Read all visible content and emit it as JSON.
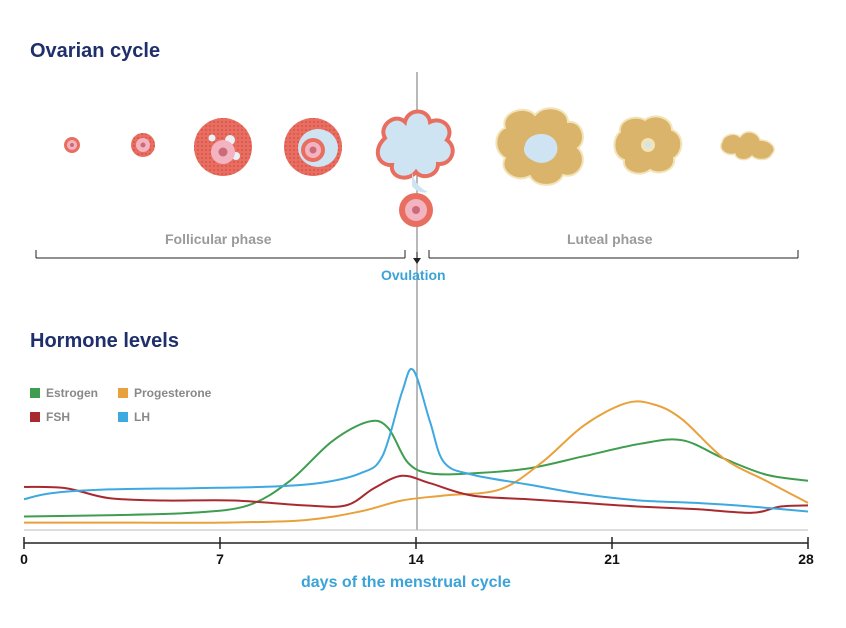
{
  "titles": {
    "ovarian": "Ovarian cycle",
    "hormones": "Hormone levels"
  },
  "phases": {
    "follicular": "Follicular phase",
    "luteal": "Luteal phase",
    "ovulation": "Ovulation"
  },
  "colors": {
    "title": "#1f2f6b",
    "estrogen": "#3e9d4e",
    "progesterone": "#e9a13b",
    "fsh": "#a82a2f",
    "lh": "#3ea8e0",
    "follicle": "#e86f5f",
    "corpus_luteum": "#d9b46a"
  },
  "legend": [
    {
      "key": "estrogen",
      "label": "Estrogen"
    },
    {
      "key": "progesterone",
      "label": "Progesterone"
    },
    {
      "key": "fsh",
      "label": "FSH"
    },
    {
      "key": "lh",
      "label": "LH"
    }
  ],
  "ovarian_stages": [
    "primordial-follicle-icon",
    "primary-follicle-icon",
    "secondary-follicle-icon",
    "antral-follicle-icon",
    "ovulating-follicle-icon",
    "corpus-luteum-icon",
    "regressing-corpus-luteum-icon",
    "corpus-albicans-icon"
  ],
  "chart_data": {
    "type": "line",
    "xlabel": "days of the menstrual cycle",
    "ylabel": "",
    "xlim": [
      0,
      28
    ],
    "ylim": [
      0,
      100
    ],
    "x_ticks": [
      0,
      7,
      14,
      21,
      28
    ],
    "reference_line_x": 14,
    "series": [
      {
        "name": "Estrogen",
        "key": "estrogen",
        "x": [
          0,
          3,
          6,
          8,
          9.5,
          11,
          12.3,
          13,
          13.7,
          14.5,
          16,
          18,
          20,
          22,
          23.5,
          25,
          26.5,
          28
        ],
        "y": [
          11,
          12,
          14,
          20,
          40,
          72,
          88,
          83,
          55,
          46,
          46,
          50,
          60,
          70,
          73,
          58,
          45,
          40
        ]
      },
      {
        "name": "Progesterone",
        "key": "progesterone",
        "x": [
          0,
          4,
          7,
          10,
          12,
          13.5,
          15,
          17,
          18.5,
          20,
          21.5,
          22.5,
          23.5,
          25,
          26.5,
          28
        ],
        "y": [
          6,
          6,
          6,
          8,
          15,
          24,
          28,
          33,
          55,
          85,
          103,
          102,
          90,
          58,
          40,
          22
        ]
      },
      {
        "name": "FSH",
        "key": "fsh",
        "x": [
          0,
          1.5,
          3,
          5,
          7.5,
          10,
          11.5,
          12.5,
          13.5,
          14.5,
          16,
          18,
          20,
          22,
          24,
          26,
          27,
          28
        ],
        "y": [
          35,
          34,
          26,
          24,
          24,
          20,
          20,
          34,
          44,
          38,
          28,
          25,
          22,
          19,
          17,
          14,
          19,
          20
        ]
      },
      {
        "name": "LH",
        "key": "lh",
        "x": [
          0,
          1,
          3,
          6,
          8.5,
          10.5,
          12,
          12.8,
          13.5,
          13.9,
          14.5,
          15,
          16,
          18,
          20,
          22,
          24,
          26,
          28
        ],
        "y": [
          25,
          30,
          33,
          34,
          35,
          38,
          46,
          60,
          112,
          130,
          88,
          55,
          45,
          37,
          29,
          24,
          22,
          19,
          15
        ]
      }
    ]
  },
  "axis": {
    "ticks": [
      "0",
      "7",
      "14",
      "21",
      "28"
    ]
  }
}
